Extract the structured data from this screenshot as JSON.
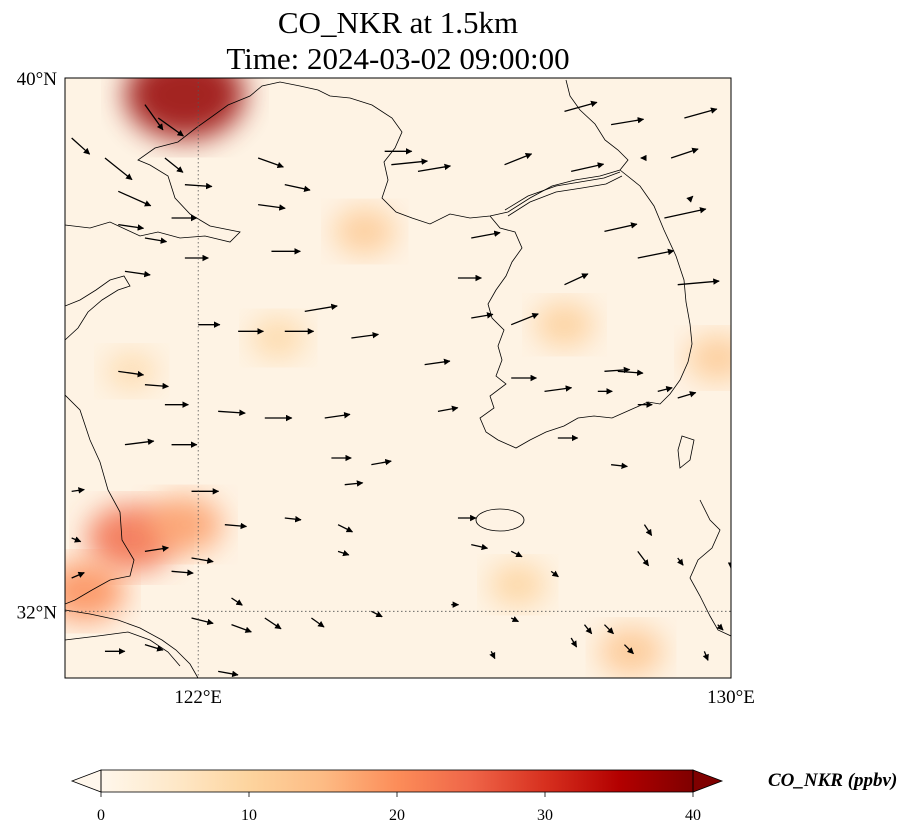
{
  "title": {
    "line1": "CO_NKR at 1.5km",
    "line2": "Time: 2024-03-02 09:00:00"
  },
  "map": {
    "extent": {
      "lon": [
        120,
        130
      ],
      "lat": [
        31,
        40
      ]
    },
    "projection": "PlateCarree",
    "lat_ticks": [
      {
        "value": 40,
        "label": "40°N"
      },
      {
        "value": 32,
        "label": "32°N"
      }
    ],
    "lon_ticks": [
      {
        "value": 122,
        "label": "122°E"
      },
      {
        "value": 130,
        "label": "130°E"
      }
    ],
    "gridlines": {
      "lon": [
        122
      ],
      "lat": [
        32
      ],
      "style": "dotted"
    },
    "coastline_color": "#000000"
  },
  "field": {
    "variable": "CO_NKR",
    "units": "ppbv",
    "colormap": "OrRd",
    "range": [
      0,
      40
    ],
    "hotspots": [
      {
        "lon": 121.8,
        "lat": 39.75,
        "value": 38,
        "note": "NE corner of image top"
      },
      {
        "lon": 121.0,
        "lat": 33.1,
        "value": 24
      },
      {
        "lon": 120.3,
        "lat": 32.3,
        "value": 20
      },
      {
        "lon": 121.8,
        "lat": 33.3,
        "value": 18
      },
      {
        "lon": 124.5,
        "lat": 37.7,
        "value": 12
      },
      {
        "lon": 127.5,
        "lat": 36.3,
        "value": 11
      },
      {
        "lon": 128.5,
        "lat": 31.4,
        "value": 13
      },
      {
        "lon": 126.8,
        "lat": 32.4,
        "value": 10
      },
      {
        "lon": 129.8,
        "lat": 35.8,
        "value": 12
      },
      {
        "lon": 123.2,
        "lat": 36.1,
        "value": 9
      },
      {
        "lon": 121.0,
        "lat": 35.6,
        "value": 8
      }
    ]
  },
  "wind": {
    "vectors": [
      [
        120.1,
        39.1,
        1.0,
        -0.9
      ],
      [
        120.6,
        38.8,
        1.5,
        -1.2
      ],
      [
        121.2,
        39.6,
        1.0,
        -1.4
      ],
      [
        121.4,
        39.4,
        1.4,
        -1.0
      ],
      [
        121.5,
        38.8,
        1.0,
        -0.8
      ],
      [
        120.8,
        38.3,
        1.8,
        -0.8
      ],
      [
        121.6,
        37.9,
        1.4,
        0.0
      ],
      [
        122.9,
        38.8,
        1.4,
        -0.5
      ],
      [
        123.3,
        38.4,
        1.4,
        -0.3
      ],
      [
        122.9,
        38.1,
        1.5,
        -0.2
      ],
      [
        124.8,
        38.9,
        1.5,
        0.0
      ],
      [
        124.9,
        38.7,
        2.0,
        0.2
      ],
      [
        125.3,
        38.6,
        1.8,
        0.3
      ],
      [
        126.6,
        38.7,
        1.5,
        0.6
      ],
      [
        127.5,
        39.5,
        1.8,
        0.5
      ],
      [
        127.6,
        38.6,
        1.8,
        0.4
      ],
      [
        128.2,
        39.3,
        1.8,
        0.3
      ],
      [
        129.3,
        39.4,
        1.8,
        0.5
      ],
      [
        129.1,
        38.8,
        1.5,
        0.5
      ],
      [
        128.7,
        38.8,
        -0.2,
        0.0
      ],
      [
        128.1,
        37.7,
        1.8,
        0.4
      ],
      [
        129.0,
        37.9,
        2.3,
        0.5
      ],
      [
        129.4,
        38.2,
        0.1,
        0.1
      ],
      [
        128.6,
        37.3,
        2.0,
        0.4
      ],
      [
        129.2,
        36.9,
        2.3,
        0.2
      ],
      [
        127.5,
        36.9,
        1.3,
        0.6
      ],
      [
        126.1,
        37.6,
        1.6,
        0.3
      ],
      [
        125.9,
        37.0,
        1.3,
        0.0
      ],
      [
        126.7,
        36.3,
        1.5,
        0.6
      ],
      [
        123.6,
        36.5,
        1.8,
        0.3
      ],
      [
        122.0,
        36.3,
        1.2,
        0.0
      ],
      [
        122.6,
        36.2,
        1.4,
        0.0
      ],
      [
        123.3,
        36.2,
        1.6,
        0.0
      ],
      [
        124.3,
        36.1,
        1.5,
        0.2
      ],
      [
        120.8,
        37.8,
        1.4,
        -0.2
      ],
      [
        120.9,
        37.1,
        1.4,
        -0.2
      ],
      [
        120.1,
        37.1,
        0.0,
        0.0
      ],
      [
        121.2,
        37.6,
        1.2,
        -0.2
      ],
      [
        121.8,
        38.4,
        1.5,
        -0.1
      ],
      [
        121.8,
        37.3,
        1.3,
        0.0
      ],
      [
        123.1,
        37.4,
        1.6,
        0.0
      ],
      [
        125.4,
        35.7,
        1.4,
        0.2
      ],
      [
        126.1,
        36.4,
        1.2,
        0.2
      ],
      [
        126.7,
        35.5,
        1.4,
        0.0
      ],
      [
        127.2,
        35.3,
        1.5,
        0.2
      ],
      [
        128.1,
        35.6,
        1.4,
        0.1
      ],
      [
        128.3,
        35.6,
        1.4,
        -0.1
      ],
      [
        128.0,
        35.3,
        0.8,
        0.0
      ],
      [
        128.6,
        35.1,
        0.8,
        0.0
      ],
      [
        128.9,
        35.3,
        0.8,
        0.2
      ],
      [
        129.2,
        35.2,
        1.0,
        0.3
      ],
      [
        127.4,
        34.6,
        1.1,
        0.0
      ],
      [
        128.2,
        34.2,
        0.9,
        -0.1
      ],
      [
        129.4,
        34.0,
        0.0,
        0.0
      ],
      [
        120.8,
        35.6,
        1.4,
        -0.2
      ],
      [
        121.2,
        35.4,
        1.3,
        -0.1
      ],
      [
        121.5,
        35.1,
        1.3,
        0.0
      ],
      [
        122.3,
        35.0,
        1.5,
        -0.1
      ],
      [
        123.0,
        34.9,
        1.5,
        0.0
      ],
      [
        123.9,
        34.9,
        1.4,
        0.2
      ],
      [
        125.6,
        35.0,
        1.1,
        0.2
      ],
      [
        124.0,
        34.3,
        1.1,
        0.0
      ],
      [
        124.2,
        33.9,
        1.0,
        0.1
      ],
      [
        124.6,
        34.2,
        1.1,
        0.2
      ],
      [
        120.9,
        34.5,
        1.6,
        0.2
      ],
      [
        121.6,
        34.5,
        1.4,
        0.0
      ],
      [
        120.1,
        35.2,
        0.0,
        0.0
      ],
      [
        120.1,
        33.8,
        0.7,
        0.1
      ],
      [
        120.1,
        33.1,
        0.5,
        -0.2
      ],
      [
        121.9,
        33.8,
        1.5,
        0.0
      ],
      [
        122.4,
        33.3,
        1.2,
        -0.1
      ],
      [
        123.3,
        33.4,
        0.9,
        -0.1
      ],
      [
        124.1,
        33.3,
        0.8,
        -0.4
      ],
      [
        124.1,
        32.9,
        0.6,
        -0.2
      ],
      [
        125.9,
        33.4,
        1.0,
        0.0
      ],
      [
        126.1,
        33.0,
        0.9,
        -0.2
      ],
      [
        126.7,
        32.9,
        0.6,
        -0.3
      ],
      [
        127.3,
        32.6,
        0.4,
        -0.3
      ],
      [
        128.6,
        32.9,
        0.6,
        -0.8
      ],
      [
        128.7,
        33.3,
        0.4,
        -0.6
      ],
      [
        129.2,
        32.8,
        0.3,
        -0.4
      ],
      [
        130.0,
        32.7,
        0.0,
        -0.2
      ],
      [
        120.1,
        32.5,
        0.7,
        0.3
      ],
      [
        121.2,
        32.9,
        1.3,
        0.2
      ],
      [
        121.6,
        32.6,
        1.2,
        -0.1
      ],
      [
        121.9,
        32.8,
        1.2,
        -0.2
      ],
      [
        122.5,
        32.2,
        0.6,
        -0.4
      ],
      [
        123.0,
        31.9,
        0.9,
        -0.6
      ],
      [
        123.7,
        31.9,
        0.7,
        -0.5
      ],
      [
        124.6,
        32.0,
        0.6,
        -0.3
      ],
      [
        125.8,
        32.1,
        0.4,
        0.0
      ],
      [
        126.7,
        31.9,
        0.4,
        -0.2
      ],
      [
        127.8,
        31.8,
        0.4,
        -0.5
      ],
      [
        128.1,
        31.8,
        0.5,
        -0.5
      ],
      [
        128.4,
        31.5,
        0.5,
        -0.5
      ],
      [
        129.8,
        31.8,
        0.3,
        -0.3
      ],
      [
        129.6,
        31.4,
        0.2,
        -0.5
      ],
      [
        122.5,
        31.8,
        1.1,
        -0.4
      ],
      [
        121.9,
        31.9,
        1.2,
        -0.3
      ],
      [
        121.2,
        31.5,
        1.0,
        -0.3
      ],
      [
        120.6,
        31.4,
        1.1,
        0.0
      ],
      [
        122.3,
        31.1,
        1.1,
        -0.2
      ],
      [
        126.4,
        31.4,
        0.2,
        -0.4
      ],
      [
        127.6,
        31.6,
        0.3,
        -0.5
      ]
    ]
  },
  "colorbar": {
    "ticks": [
      0,
      10,
      20,
      30,
      40
    ],
    "label": "CO_NKR (ppbv)",
    "extend": "both"
  }
}
